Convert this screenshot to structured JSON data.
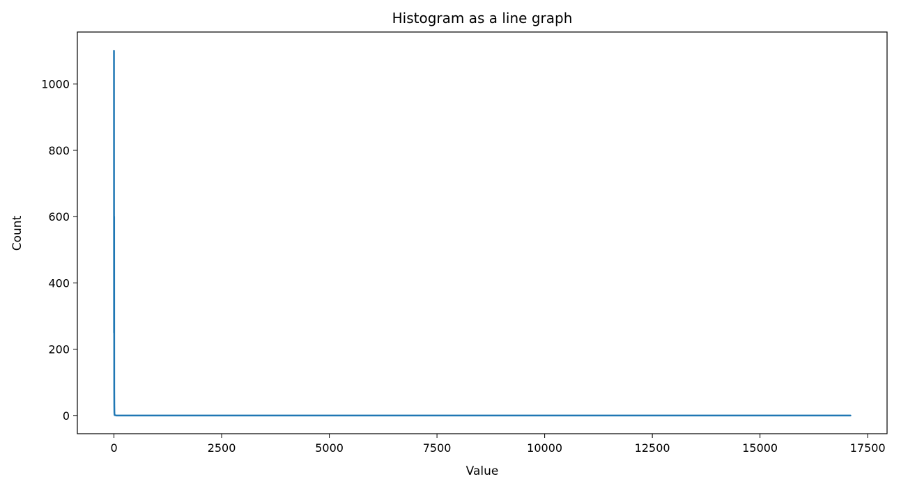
{
  "chart_data": {
    "type": "line",
    "title": "Histogram as a line graph",
    "xlabel": "Value",
    "ylabel": "Count",
    "xlim": [
      -850,
      17950
    ],
    "ylim": [
      -55,
      1157
    ],
    "x_ticks": [
      0,
      2500,
      5000,
      7500,
      10000,
      12500,
      15000,
      17500
    ],
    "x_tick_labels": [
      "0",
      "2500",
      "5000",
      "7500",
      "10000",
      "12500",
      "15000",
      "17500"
    ],
    "y_ticks": [
      0,
      200,
      400,
      600,
      800,
      1000
    ],
    "y_tick_labels": [
      "0",
      "200",
      "400",
      "600",
      "800",
      "1000"
    ],
    "grid": false,
    "series": [
      {
        "color": "#1f77b4",
        "x": [
          0,
          2,
          4,
          6,
          8,
          10,
          12,
          14,
          16,
          50,
          17100
        ],
        "y": [
          1100,
          250,
          600,
          80,
          30,
          10,
          5,
          2,
          1,
          0,
          0
        ]
      }
    ]
  }
}
